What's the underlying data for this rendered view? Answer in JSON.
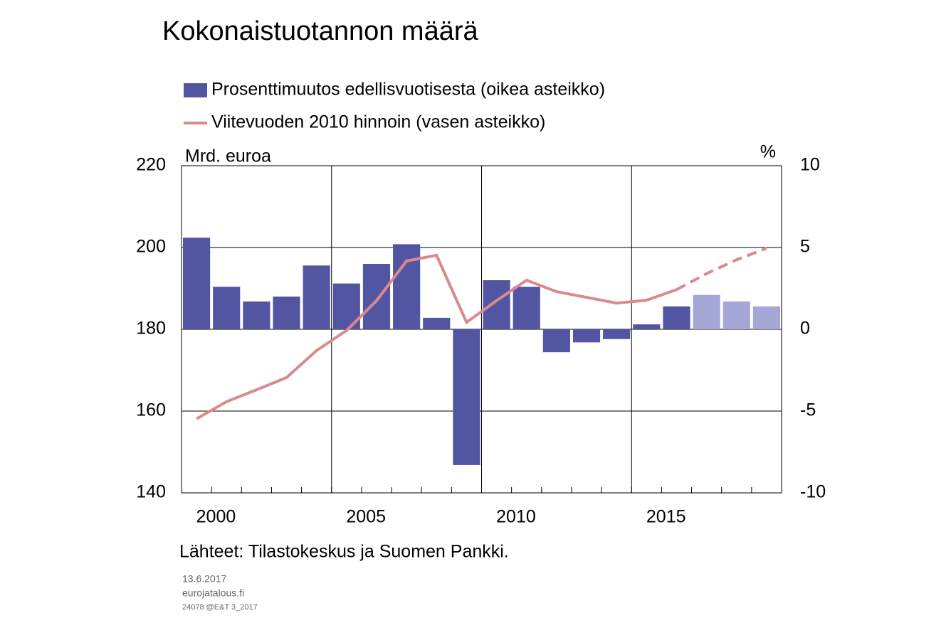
{
  "chart_data": {
    "type": "bar-line",
    "title": "Kokonaistuotannon määrä",
    "y_label": "Mrd. euroa",
    "y2_label": "%",
    "categories": [
      "2000",
      null,
      null,
      null,
      null,
      "2005",
      null,
      null,
      null,
      null,
      "2010",
      null,
      null,
      null,
      null,
      "2015",
      null,
      null,
      null,
      null
    ],
    "series": [
      {
        "name": "Prosenttimuutos edellisvuotisesta (oikea asteikko)",
        "kind": "bar",
        "axis": "y2",
        "color": "#5256a2",
        "colors": [
          "#5256a2",
          "#5256a2",
          "#5256a2",
          "#5256a2",
          "#5256a2",
          "#5256a2",
          "#5256a2",
          "#5256a2",
          "#5256a2",
          "#5256a2",
          "#5256a2",
          "#5256a2",
          "#5256a2",
          "#5256a2",
          "#5256a2",
          "#5256a2",
          "#5256a2",
          "#a5a7d6",
          "#a5a7d6",
          "#a5a7d6"
        ],
        "values": [
          5.6,
          2.6,
          1.7,
          2.0,
          3.9,
          2.8,
          4.0,
          5.2,
          0.7,
          -8.3,
          3.0,
          2.6,
          -1.4,
          -0.8,
          -0.6,
          0.3,
          1.4,
          2.1,
          1.7,
          1.4
        ]
      },
      {
        "name": "Viitevuoden 2010 hinnoin (vasen asteikko)",
        "kind": "line",
        "axis": "y",
        "color": "#d98a8e",
        "dashed_from": 16,
        "values": [
          158.1,
          162.3,
          165.2,
          168.2,
          174.8,
          179.7,
          187.0,
          196.7,
          198.1,
          181.7,
          187.0,
          192.0,
          189.2,
          187.8,
          186.4,
          187.1,
          189.7,
          193.6,
          197.0,
          199.8
        ]
      }
    ],
    "ylim": [
      140,
      220
    ],
    "yticks": [
      140,
      160,
      180,
      200,
      220
    ],
    "y2lim": [
      -10,
      10
    ],
    "y2ticks": [
      -10,
      -5,
      0,
      5,
      10
    ],
    "grid": true,
    "source": "Lähteet: Tilastokeskus ja Suomen Pankki.",
    "date": "13.6.2017",
    "site": "eurojatalous.fi",
    "code": "24078 @E&T 3_2017"
  }
}
